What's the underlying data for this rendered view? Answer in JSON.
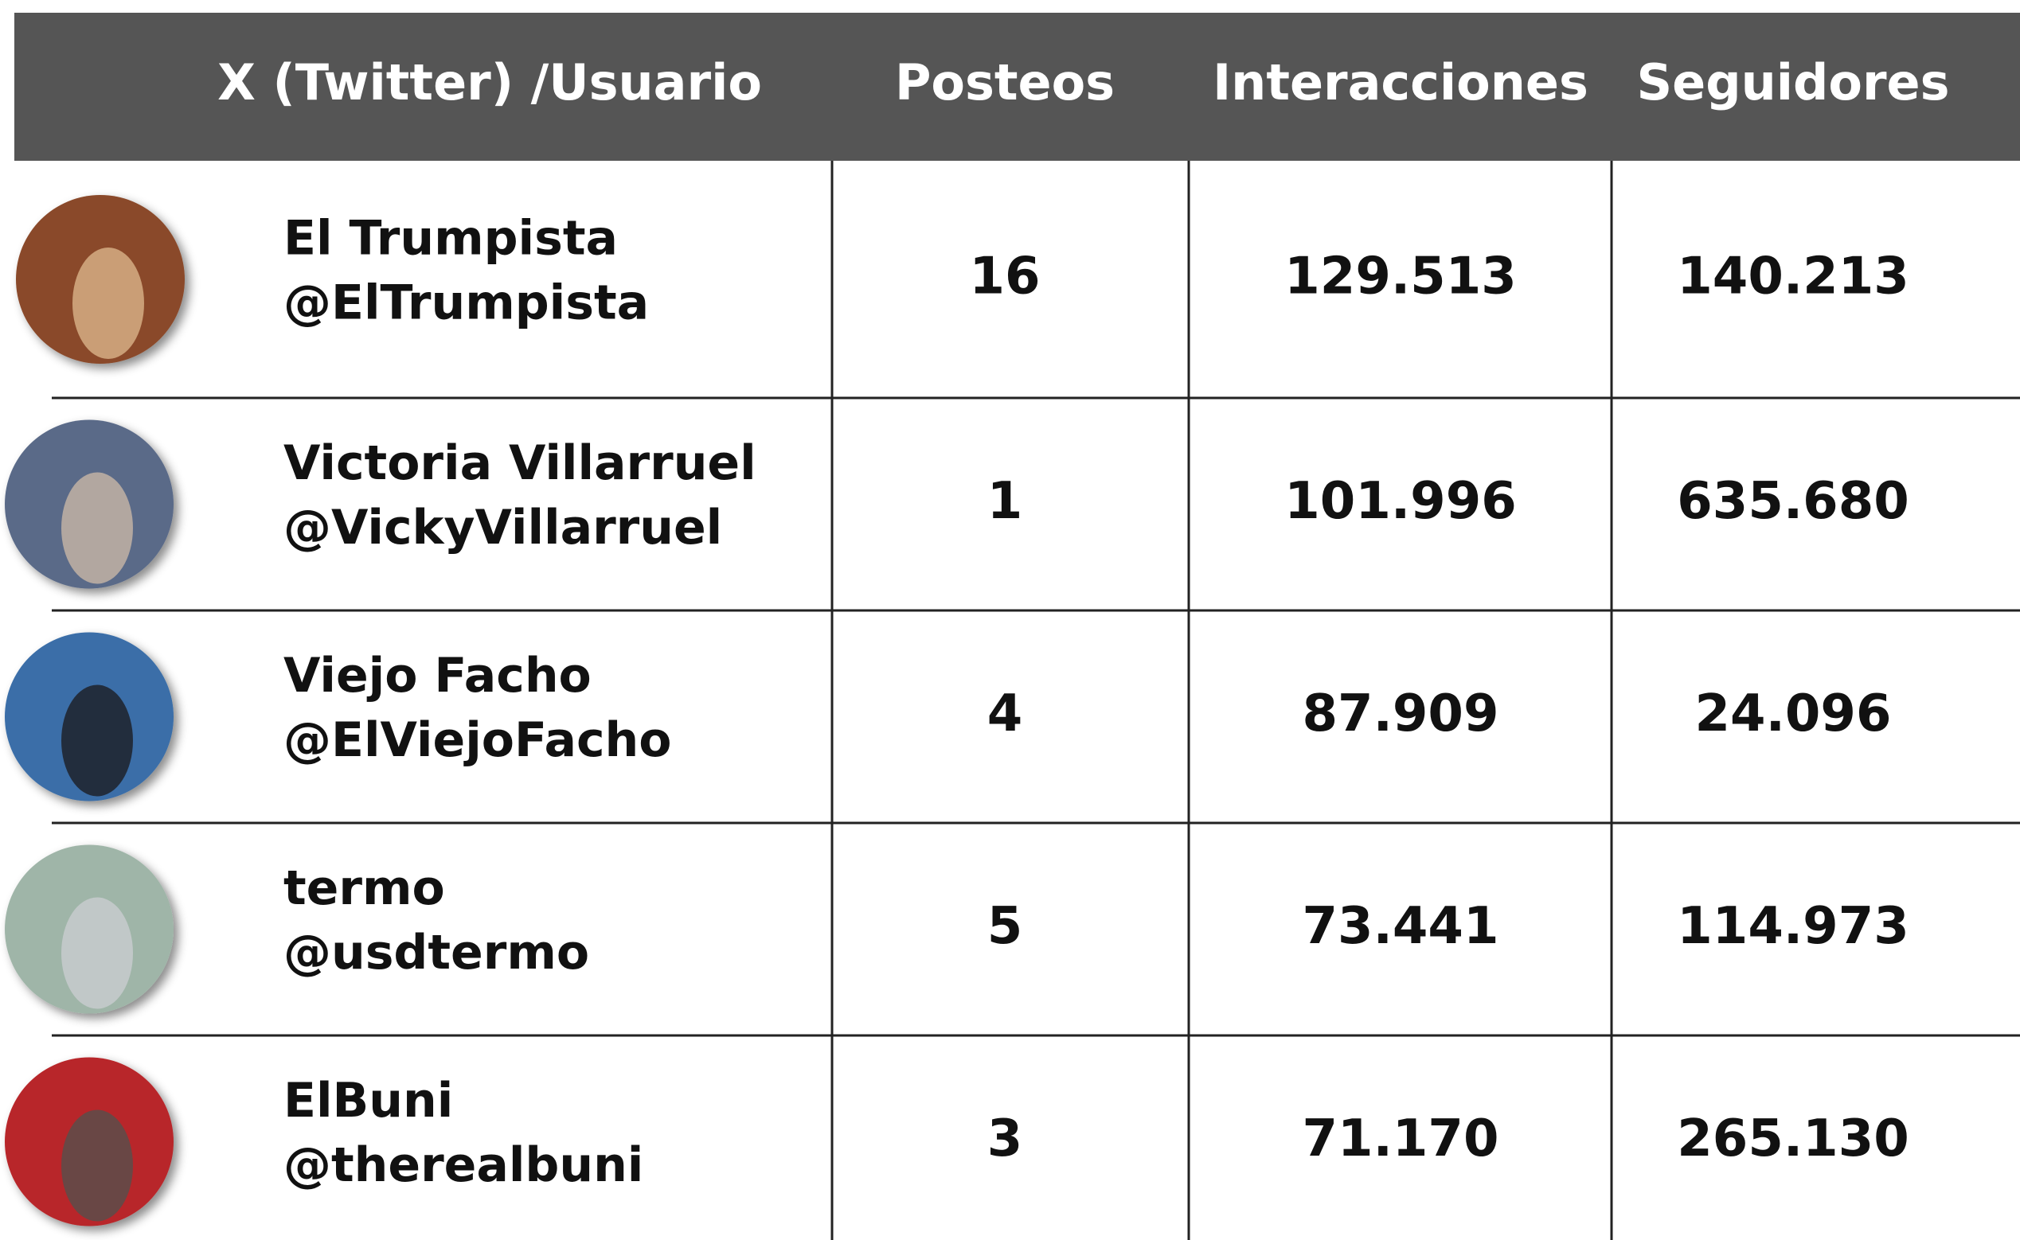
{
  "table": {
    "header": [
      "X (Twitter) /Usuario",
      "Posteos",
      "Interacciones",
      "Seguidores"
    ],
    "rows": [
      {
        "name": "El Trumpista",
        "handle": "@ElTrumpista",
        "posts": "16",
        "interactions": "129.513",
        "followers": "140.213"
      },
      {
        "name": "Victoria Villarruel",
        "handle": "@VickyVillarruel",
        "posts": "1",
        "interactions": "101.996",
        "followers": "635.680"
      },
      {
        "name": "Viejo Facho",
        "handle": "@ElViejoFacho",
        "posts": "4",
        "interactions": "87.909",
        "followers": "24.096"
      },
      {
        "name": "termo",
        "handle": "@usdtermo",
        "posts": "5",
        "interactions": "73.441",
        "followers": "114.973"
      },
      {
        "name": "ElBuni",
        "handle": "@therealbuni",
        "posts": "3",
        "interactions": "71.170",
        "followers": "265.130"
      }
    ]
  }
}
